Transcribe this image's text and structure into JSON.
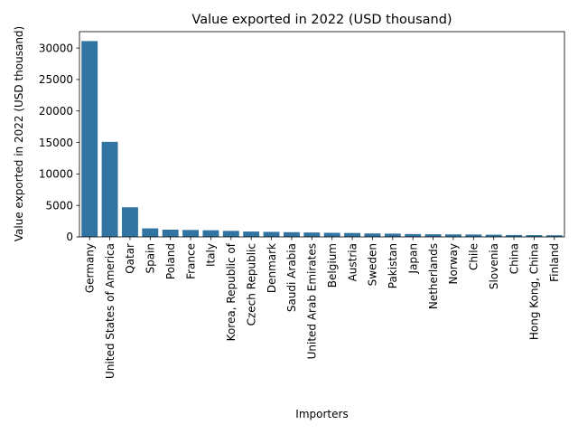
{
  "chart_data": {
    "type": "bar",
    "title": "Value exported in 2022 (USD thousand)",
    "xlabel": "Importers",
    "ylabel": "Value exported in 2022 (USD thousand)",
    "categories": [
      "Germany",
      "United States of America",
      "Qatar",
      "Spain",
      "Poland",
      "France",
      "Italy",
      "Korea, Republic of",
      "Czech Republic",
      "Denmark",
      "Saudi Arabia",
      "United Arab Emirates",
      "Belgium",
      "Austria",
      "Sweden",
      "Pakistan",
      "Japan",
      "Netherlands",
      "Norway",
      "Chile",
      "Slovenia",
      "China",
      "Hong Kong, China",
      "Finland"
    ],
    "values": [
      31100,
      15100,
      4700,
      1350,
      1150,
      1100,
      1050,
      950,
      850,
      800,
      750,
      700,
      650,
      620,
      550,
      520,
      450,
      420,
      400,
      380,
      350,
      300,
      280,
      260
    ],
    "yticks": [
      0,
      5000,
      10000,
      15000,
      20000,
      25000,
      30000
    ],
    "ylim": [
      0,
      32600
    ],
    "grid": false,
    "bar_color": "#3274a1"
  }
}
